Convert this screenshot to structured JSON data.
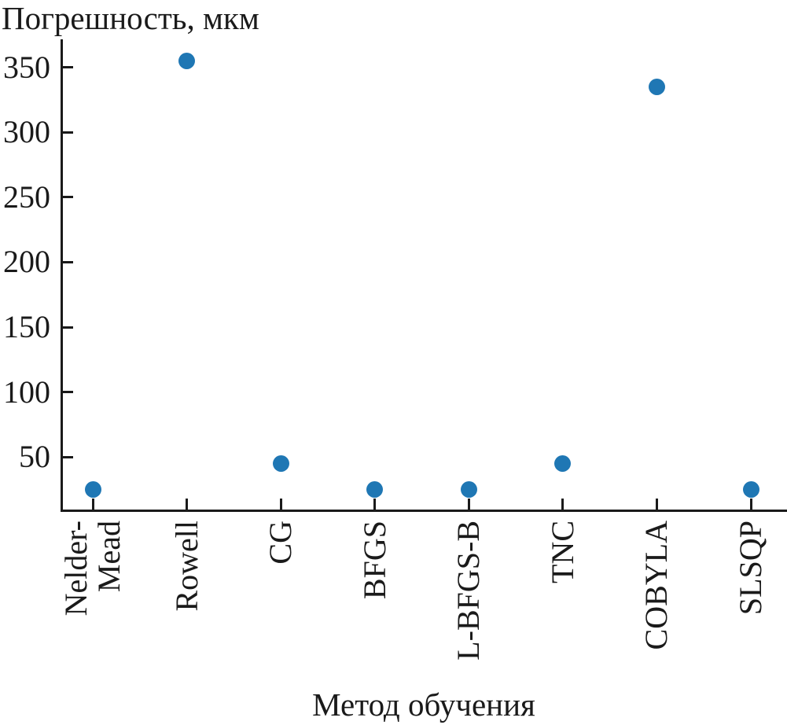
{
  "chart_data": {
    "type": "scatter",
    "title": "Погрешность, мкм",
    "xlabel": "Метод обучения",
    "ylabel": "Погрешность, мкм",
    "categories": [
      "Nelder-\nMead",
      "Rowell",
      "CG",
      "BFGS",
      "L-BFGS-B",
      "TNC",
      "COBYLA",
      "SLSQP"
    ],
    "values": [
      25,
      355,
      45,
      25,
      25,
      45,
      335,
      25
    ],
    "yticks": [
      50,
      100,
      150,
      200,
      250,
      300,
      350
    ],
    "ylim": [
      8.5,
      371.5
    ],
    "grid": false,
    "legend": "none",
    "tick_direction": "in"
  },
  "colors": {
    "marker": "#1f77b4",
    "axis": "#1a1a1a",
    "text": "#1a1a1a",
    "background": "#ffffff"
  }
}
